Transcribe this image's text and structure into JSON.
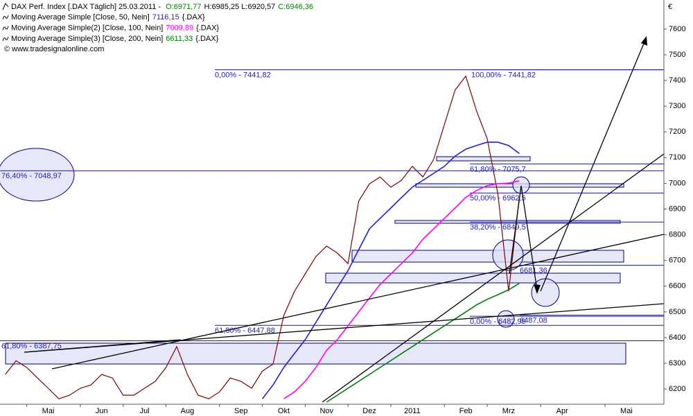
{
  "chart_data": {
    "type": "line",
    "header": [
      {
        "text": "DAX Perf. Index [.DAX  Täglich] 25.03.2011 - ",
        "color": "#000000"
      },
      {
        "text": "O:6971,77",
        "color": "#008000"
      },
      {
        "text": "H:6985,25 L:6920,57",
        "color": "#000000"
      },
      {
        "text": "C:6946,36",
        "color": "#008000"
      }
    ],
    "copyright": "© www.tradesignalonline.com",
    "currency": "€",
    "legend_suffix": "{.DAX}",
    "categories": [
      null,
      null,
      null,
      null,
      "Mai",
      null,
      null,
      null,
      null,
      "Jun",
      null,
      null,
      null,
      "Jul",
      null,
      null,
      null,
      "Aug",
      null,
      null,
      null,
      null,
      "Sep",
      null,
      null,
      null,
      "Okt",
      null,
      null,
      null,
      "Nov",
      null,
      null,
      null,
      "Dez",
      null,
      null,
      null,
      "2011",
      null,
      null,
      null,
      null,
      "Feb",
      null,
      null,
      null,
      "Mrz",
      null,
      null,
      null,
      null,
      "Apr",
      null,
      null,
      null,
      null,
      null,
      "Mai",
      null,
      null,
      null
    ],
    "series": [
      {
        "name": "DAX Perf. Index",
        "color": "#800000",
        "values": [
          6257,
          6310,
          6284,
          6243,
          6203,
          6162,
          6176,
          6203,
          6216,
          6257,
          6243,
          6176,
          6176,
          6203,
          6230,
          6284,
          6365,
          6257,
          6176,
          6162,
          6189,
          6243,
          6230,
          6203,
          6270,
          6297,
          6486,
          6580,
          6648,
          6715,
          6756,
          6729,
          6688,
          6931,
          6998,
          7025,
          6985,
          7012,
          7066,
          7025,
          7093,
          7228,
          7363,
          7417,
          7282,
          7174,
          6958,
          6580,
          6946.36,
          null,
          null,
          null,
          null,
          null,
          null,
          null,
          null,
          null,
          null,
          null,
          null,
          null
        ]
      },
      {
        "name": "Moving Average Simple [Close, 50, Nein]",
        "color": "#1f1fd6",
        "legend": true,
        "last_label": {
          "value": 7116.15,
          "label": "7116,15"
        },
        "values": [
          null,
          null,
          null,
          null,
          null,
          null,
          null,
          null,
          null,
          null,
          null,
          null,
          null,
          null,
          null,
          null,
          null,
          null,
          null,
          null,
          null,
          null,
          null,
          null,
          6162,
          6216,
          6284,
          6338,
          6392,
          6459,
          6527,
          6594,
          6661,
          6742,
          6823,
          6864,
          6904,
          6945,
          6985,
          7012,
          7039,
          7066,
          7106,
          7133,
          7147,
          7160,
          7160,
          7147,
          7116.15,
          null,
          null,
          null,
          null,
          null,
          null,
          null,
          null,
          null,
          null,
          null,
          null,
          null
        ]
      },
      {
        "name": "Moving Average Simple(2) [Close, 100, Nein]",
        "color": "#ff00ff",
        "legend": true,
        "last_label": {
          "value": 7009.89,
          "label": "7009,89"
        },
        "values": [
          null,
          null,
          null,
          null,
          null,
          null,
          null,
          null,
          null,
          null,
          null,
          null,
          null,
          null,
          null,
          null,
          null,
          null,
          null,
          null,
          null,
          null,
          null,
          null,
          null,
          null,
          6162,
          6189,
          6230,
          6284,
          6351,
          6392,
          6446,
          6500,
          6554,
          6607,
          6648,
          6688,
          6729,
          6783,
          6823,
          6864,
          6904,
          6945,
          6972,
          6991,
          6999,
          7001,
          7009.89,
          null,
          null,
          null,
          null,
          null,
          null,
          null,
          null,
          null,
          null,
          null,
          null,
          null
        ]
      },
      {
        "name": "Moving Average Simple(3) [Close, 200, Nein]",
        "color": "#007a00",
        "legend": true,
        "last_label": {
          "value": 6611.33,
          "label": "6611,33"
        },
        "values": [
          null,
          null,
          null,
          null,
          null,
          null,
          null,
          null,
          null,
          null,
          null,
          null,
          null,
          null,
          null,
          null,
          null,
          null,
          null,
          null,
          null,
          null,
          null,
          null,
          null,
          null,
          null,
          null,
          null,
          null,
          6149,
          6176,
          6203,
          6230,
          6257,
          6284,
          6311,
          6338,
          6365,
          6392,
          6419,
          6446,
          6473,
          6500,
          6527,
          6549,
          6567,
          6586,
          6611.33,
          null,
          null,
          null,
          null,
          null,
          null,
          null,
          null,
          null,
          null,
          null,
          null,
          null
        ]
      }
    ],
    "levels": [
      {
        "text": "0,00% - 7441,82",
        "value": 7441.82
      },
      {
        "text": "100,00% - 7441,82",
        "value": 7441.82
      },
      {
        "text": "76,40% - 7048,97",
        "value": 7048.97
      },
      {
        "text": "61,80% - 7075,7",
        "value": 7075.7
      },
      {
        "text": "50,00% - 6962,5",
        "value": 6962.5
      },
      {
        "text": "38,20% - 6849,5",
        "value": 6849.5
      },
      {
        "text": "6681,36",
        "value": 6681.36
      },
      {
        "text": "61,80% - 6447,88",
        "value": 6447.88
      },
      {
        "text": "0,00% - 6482,99",
        "value": 6482.99
      },
      {
        "text": "6487,08",
        "value": 6487.08
      },
      {
        "text": "61,80% - 6387,75",
        "value": 6387.75
      }
    ],
    "ylim": [
      6141,
      7713
    ],
    "yticks": [
      6200,
      6300,
      6400,
      6500,
      6600,
      6700,
      6800,
      6900,
      7000,
      7100,
      7200,
      7300,
      7400,
      7500,
      7600
    ]
  }
}
